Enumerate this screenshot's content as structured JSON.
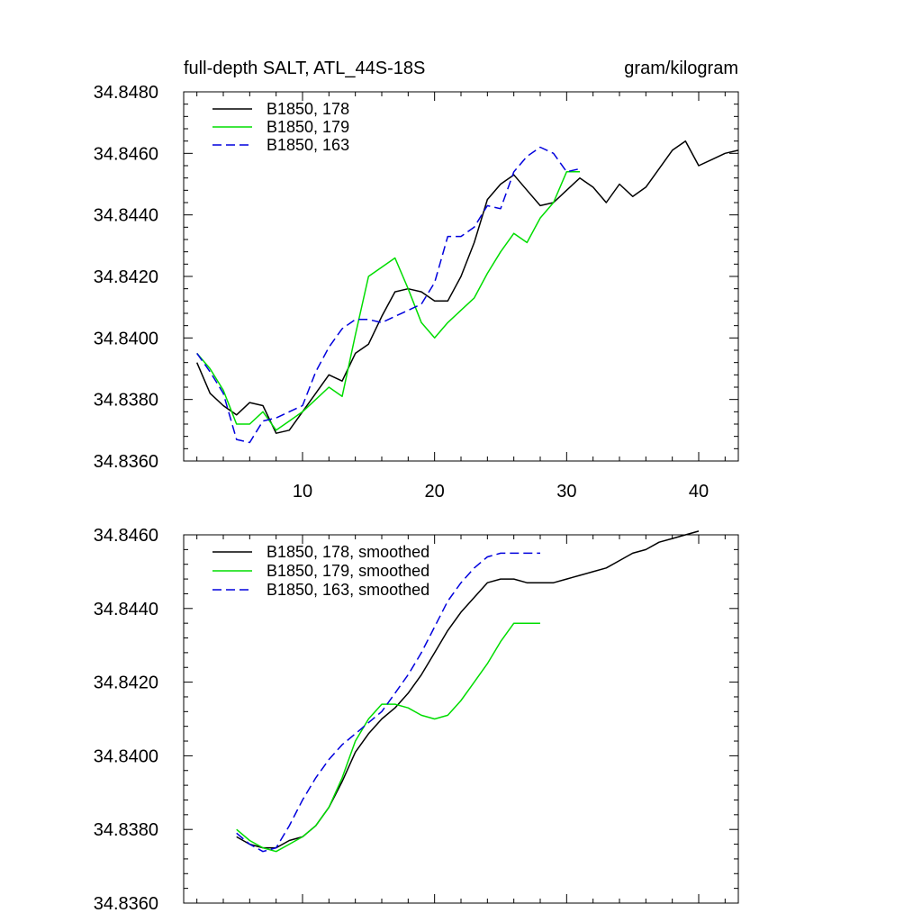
{
  "chart_data": [
    {
      "type": "line",
      "title_left": "full-depth SALT, ATL_44S-18S",
      "title_right": "gram/kilogram",
      "xlabel": "",
      "ylabel": "",
      "xlim": [
        1,
        43
      ],
      "ylim": [
        34.836,
        34.848
      ],
      "xticks": [
        10,
        20,
        30,
        40
      ],
      "xtick_labels": [
        "10",
        "20",
        "30",
        "40"
      ],
      "yticks": [
        34.836,
        34.838,
        34.84,
        34.842,
        34.844,
        34.846,
        34.848
      ],
      "ytick_labels": [
        "34.8360",
        "34.8380",
        "34.8400",
        "34.8420",
        "34.8440",
        "34.8460",
        "34.8480"
      ],
      "legend_position": "top-left",
      "series": [
        {
          "name": "B1850, 178",
          "color": "#000000",
          "dash": "solid",
          "x": [
            2,
            3,
            4,
            5,
            6,
            7,
            8,
            9,
            10,
            11,
            12,
            13,
            14,
            15,
            16,
            17,
            18,
            19,
            20,
            21,
            22,
            23,
            24,
            25,
            26,
            27,
            28,
            29,
            30,
            31,
            32,
            33,
            34,
            35,
            36,
            37,
            38,
            39,
            40,
            41,
            42,
            43
          ],
          "values": [
            34.8392,
            34.8382,
            34.8378,
            34.8375,
            34.8379,
            34.8378,
            34.8369,
            34.837,
            34.8376,
            34.8382,
            34.8388,
            34.8386,
            34.8395,
            34.8398,
            34.8407,
            34.8415,
            34.8416,
            34.8415,
            34.8412,
            34.8412,
            34.842,
            34.8431,
            34.8445,
            34.845,
            34.8453,
            34.8448,
            34.8443,
            34.8444,
            34.8448,
            34.8452,
            34.8449,
            34.8444,
            34.845,
            34.8446,
            34.8449,
            34.8455,
            34.8461,
            34.8464,
            34.8456,
            34.8458,
            34.846,
            34.8461
          ]
        },
        {
          "name": "B1850, 179",
          "color": "#00dd00",
          "dash": "solid",
          "x": [
            2,
            3,
            4,
            5,
            6,
            7,
            8,
            9,
            10,
            11,
            12,
            13,
            14,
            15,
            16,
            17,
            18,
            19,
            20,
            21,
            22,
            23,
            24,
            25,
            26,
            27,
            28,
            29,
            30,
            31
          ],
          "values": [
            34.8395,
            34.839,
            34.8383,
            34.8372,
            34.8372,
            34.8376,
            34.837,
            34.8373,
            34.8376,
            34.838,
            34.8384,
            34.8381,
            34.8401,
            34.842,
            34.8423,
            34.8426,
            34.8416,
            34.8405,
            34.84,
            34.8405,
            34.8409,
            34.8413,
            34.8421,
            34.8428,
            34.8434,
            34.8431,
            34.8439,
            34.8444,
            34.8454,
            34.8454
          ]
        },
        {
          "name": "B1850, 163",
          "color": "#0000dd",
          "dash": "dashed",
          "x": [
            2,
            3,
            4,
            5,
            6,
            7,
            8,
            9,
            10,
            11,
            12,
            13,
            14,
            15,
            16,
            17,
            18,
            19,
            20,
            21,
            22,
            23,
            24,
            25,
            26,
            27,
            28,
            29,
            30,
            31
          ],
          "values": [
            34.8395,
            34.8389,
            34.8382,
            34.8367,
            34.8366,
            34.8373,
            34.8374,
            34.8376,
            34.8378,
            34.8389,
            34.8397,
            34.8403,
            34.8406,
            34.8406,
            34.8405,
            34.8407,
            34.8409,
            34.8411,
            34.8418,
            34.8433,
            34.8433,
            34.8436,
            34.8443,
            34.8442,
            34.8454,
            34.8459,
            34.8462,
            34.846,
            34.8454,
            34.8455
          ]
        }
      ]
    },
    {
      "type": "line",
      "title_left": "",
      "title_right": "",
      "xlabel": "",
      "ylabel": "",
      "xlim": [
        1,
        43
      ],
      "ylim": [
        34.836,
        34.846
      ],
      "xticks": [
        10,
        20,
        30,
        40
      ],
      "xtick_labels": [],
      "yticks": [
        34.836,
        34.838,
        34.84,
        34.842,
        34.844,
        34.846
      ],
      "ytick_labels": [
        "34.8360",
        "34.8380",
        "34.8400",
        "34.8420",
        "34.8440",
        "34.8460"
      ],
      "legend_position": "top-left",
      "series": [
        {
          "name": "B1850, 178, smoothed",
          "color": "#000000",
          "dash": "solid",
          "x": [
            5,
            6,
            7,
            8,
            9,
            10,
            11,
            12,
            13,
            14,
            15,
            16,
            17,
            18,
            19,
            20,
            21,
            22,
            23,
            24,
            25,
            26,
            27,
            28,
            29,
            30,
            31,
            32,
            33,
            34,
            35,
            36,
            37,
            38,
            39,
            40
          ],
          "values": [
            34.8378,
            34.8376,
            34.8375,
            34.8375,
            34.8377,
            34.8378,
            34.8381,
            34.8386,
            34.8393,
            34.8401,
            34.8406,
            34.841,
            34.8413,
            34.8417,
            34.8422,
            34.8428,
            34.8434,
            34.8439,
            34.8443,
            34.8447,
            34.8448,
            34.8448,
            34.8447,
            34.8447,
            34.8447,
            34.8448,
            34.8449,
            34.845,
            34.8451,
            34.8453,
            34.8455,
            34.8456,
            34.8458,
            34.8459,
            34.846,
            34.8461
          ]
        },
        {
          "name": "B1850, 179, smoothed",
          "color": "#00dd00",
          "dash": "solid",
          "x": [
            5,
            6,
            7,
            8,
            9,
            10,
            11,
            12,
            13,
            14,
            15,
            16,
            17,
            18,
            19,
            20,
            21,
            22,
            23,
            24,
            25,
            26,
            27,
            28
          ],
          "values": [
            34.838,
            34.8377,
            34.8375,
            34.8374,
            34.8376,
            34.8378,
            34.8381,
            34.8386,
            34.8394,
            34.8404,
            34.841,
            34.8414,
            34.8414,
            34.8413,
            34.8411,
            34.841,
            34.8411,
            34.8415,
            34.842,
            34.8425,
            34.8431,
            34.8436,
            34.8436,
            34.8436
          ]
        },
        {
          "name": "B1850, 163, smoothed",
          "color": "#0000dd",
          "dash": "dashed",
          "x": [
            5,
            6,
            7,
            8,
            9,
            10,
            11,
            12,
            13,
            14,
            15,
            16,
            17,
            18,
            19,
            20,
            21,
            22,
            23,
            24,
            25,
            26,
            27,
            28
          ],
          "values": [
            34.8379,
            34.8376,
            34.8374,
            34.8375,
            34.8381,
            34.8388,
            34.8394,
            34.8399,
            34.8403,
            34.8406,
            34.8409,
            34.8412,
            34.8417,
            34.8422,
            34.8428,
            34.8435,
            34.8442,
            34.8447,
            34.8451,
            34.8454,
            34.8455,
            34.8455,
            34.8455,
            34.8455
          ]
        }
      ]
    }
  ]
}
